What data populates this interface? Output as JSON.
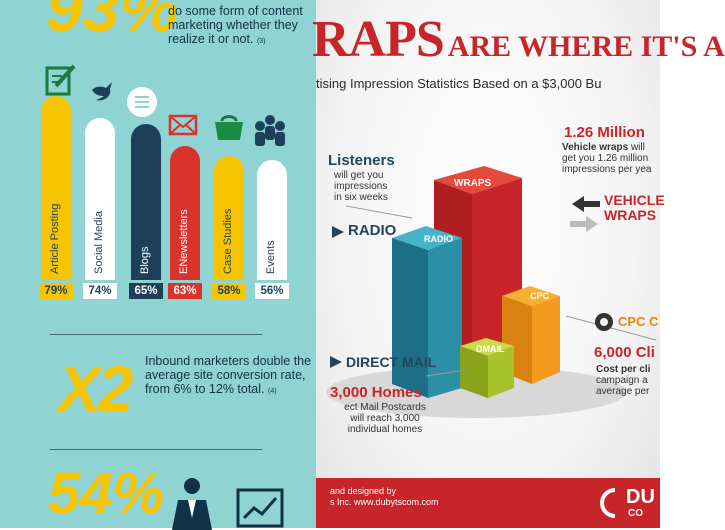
{
  "left": {
    "top_stat": "93%",
    "intro_text": "do some form of content marketing whether they realize it or not.",
    "intro_note": "(3)",
    "bars": [
      {
        "label": "Article Posting",
        "percent": "79%",
        "color": "#f6c400",
        "icon": "edit-icon"
      },
      {
        "label": "Social Media",
        "percent": "74%",
        "color": "#ffffff",
        "icon": "bird-icon"
      },
      {
        "label": "Blogs",
        "percent": "65%",
        "color": "#1d3f5a",
        "icon": "chat-bubble-icon"
      },
      {
        "label": "ENewsletters",
        "percent": "63%",
        "color": "#d9332b",
        "icon": "envelope-icon"
      },
      {
        "label": "Case Studies",
        "percent": "58%",
        "color": "#f6c400",
        "icon": "briefcase-icon"
      },
      {
        "label": "Events",
        "percent": "56%",
        "color": "#ffffff",
        "icon": "people-icon"
      }
    ],
    "x2_stat": "X2",
    "inbound_text": "Inbound marketers double the average site conversion rate, from 6% to 12% total.",
    "inbound_note": "(4)",
    "bottom_stat": "54%"
  },
  "right": {
    "title_big": "RAPS",
    "title_small": "ARE WHERE IT'S A",
    "subtitle": "tising Impression Statistics Based on a $3,000 Bu",
    "listeners_head": "Listeners",
    "listeners_text": [
      "will get you",
      "impressions",
      "in six weeks"
    ],
    "radio_label": "RADIO",
    "million_head": "1.26 Million",
    "vehicle_text_bold": "Vehicle wraps",
    "vehicle_text_rest": [
      "will",
      "get you 1.26 million",
      "impressions per yea"
    ],
    "vehicle_label_1": "VEHICLE",
    "vehicle_label_2": "WRAPS",
    "cpc_label": "CPC C",
    "clicks_head": "6,000 Cli",
    "cost_text_bold": "Cost per cli",
    "cost_text_rest": [
      "campaign a",
      "average per"
    ],
    "direct_mail_label": "DIRECT MAIL",
    "homes_head": "3,000 Homes",
    "homes_text": [
      "ect Mail Postcards",
      "will reach 3,000",
      "individual homes"
    ],
    "block_labels": {
      "wraps": "WRAPS",
      "radio": "RADIO",
      "cpc": "CPC",
      "dmail": "DMAIL"
    },
    "footer_line1": "and designed by",
    "footer_line2": "s Inc. www.dubytscom.com",
    "footer_logo": "DU",
    "footer_logo_sub": "CO"
  }
}
